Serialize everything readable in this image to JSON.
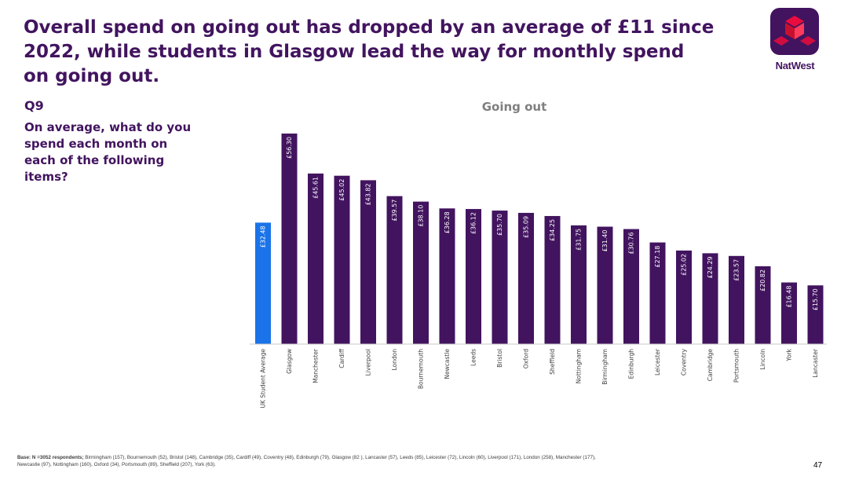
{
  "slide": {
    "title": "Overall spend on going out has dropped by an average of £11 since 2022, while students in Glasgow lead the way for monthly spend on going out.",
    "question_number": "Q9",
    "question_text": "On average, what do you spend each month on each of the following items?",
    "logo_text": "NatWest",
    "base_label": "Base: N =3052 respondents;",
    "base_detail": "Birmingham (157),  Bournemouth (52), Bristol (148), Cambridge (35), Cardiff (49), Coventry (48),  Edinburgh (79), Glasgow (82 ), Lancaster (57), Leeds (85), Leicester (72), Lincoln (60), Liverpool (171), London (258), Manchester (177), Newcastle (97), Nottingham (160), Oxford (34), Portsmouth (89), Sheffield (207), York (63).",
    "page_number": "47"
  },
  "colors": {
    "brand": "#42145f",
    "highlight": "#1a73e8",
    "axis": "#c8c8c8",
    "chart_title": "#7f7f7f"
  },
  "chart_data": {
    "type": "bar",
    "title": "Going out",
    "xlabel": "",
    "ylabel": "",
    "ylim": [
      0,
      60
    ],
    "categories": [
      "UK Student Average",
      "Glasgow",
      "Manchester",
      "Cardiff",
      "Liverpool",
      "London",
      "Bournemouth",
      "Newcastle",
      "Leeds",
      "Bristol",
      "Oxford",
      "Sheffield",
      "Nottingham",
      "Birmingham",
      "Edinburgh",
      "Leicester",
      "Coventry",
      "Cambridge",
      "Portsmouth",
      "Lincoln",
      "York",
      "Lancaster"
    ],
    "values": [
      32.48,
      56.3,
      45.61,
      45.02,
      43.82,
      39.57,
      38.1,
      36.28,
      36.12,
      35.7,
      35.09,
      34.25,
      31.75,
      31.4,
      30.76,
      27.18,
      25.02,
      24.29,
      23.57,
      20.82,
      16.48,
      15.7
    ],
    "labels": [
      "£32.48",
      "£56.30",
      "£45.61",
      "£45.02",
      "£43.82",
      "£39.57",
      "£38.10",
      "£36.28",
      "£36.12",
      "£35.70",
      "£35.09",
      "£34.25",
      "£31.75",
      "£31.40",
      "£30.76",
      "£27.18",
      "£25.02",
      "£24.29",
      "£23.57",
      "£20.82",
      "£16.48",
      "£15.70"
    ],
    "highlight_index": 0
  }
}
